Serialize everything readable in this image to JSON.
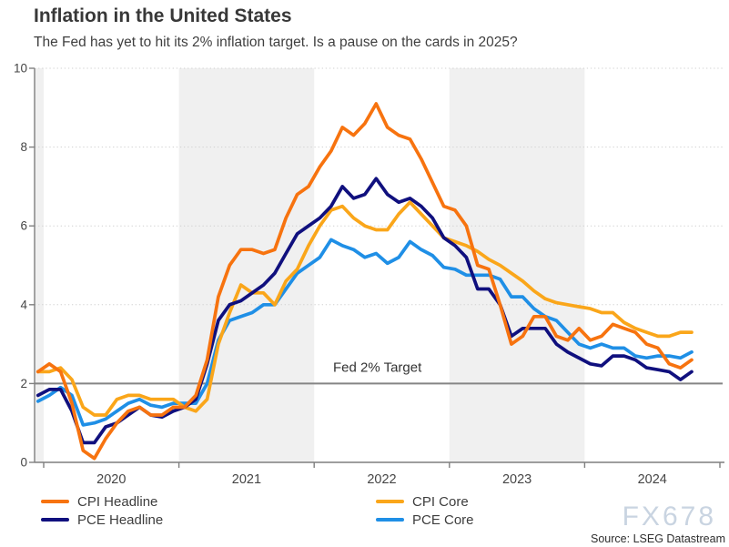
{
  "header": {
    "title": "Inflation in the United States",
    "subtitle": "The Fed has yet to hit its 2% inflation target. Is a pause on the cards in 2025?"
  },
  "chart_data": {
    "type": "line",
    "frequency": "monthly",
    "start": "Dec 2019",
    "end": "Oct 2024",
    "unit": "percent, year-over-year",
    "y_axis": {
      "min": 0,
      "max": 10,
      "tick_labels": [
        "0",
        "2",
        "4",
        "6",
        "8",
        "10"
      ]
    },
    "x_axis": {
      "tick_labels": [
        "2020",
        "2021",
        "2022",
        "2023",
        "2024"
      ]
    },
    "grid": "dotted horizontal",
    "shaded_years": [
      "2021",
      "2023"
    ],
    "target_line": {
      "label": "Fed 2% Target",
      "value": 2,
      "color": "#858585"
    },
    "series": [
      {
        "name": "CPI Headline",
        "color": "#F7730F",
        "values": [
          2.3,
          2.5,
          2.3,
          1.5,
          0.3,
          0.1,
          0.6,
          1.0,
          1.3,
          1.4,
          1.2,
          1.2,
          1.4,
          1.4,
          1.7,
          2.6,
          4.2,
          5.0,
          5.4,
          5.4,
          5.3,
          5.4,
          6.2,
          6.8,
          7.0,
          7.5,
          7.9,
          8.5,
          8.3,
          8.6,
          9.1,
          8.5,
          8.3,
          8.2,
          7.7,
          7.1,
          6.5,
          6.4,
          6.0,
          5.0,
          4.9,
          4.0,
          3.0,
          3.2,
          3.7,
          3.7,
          3.2,
          3.1,
          3.4,
          3.1,
          3.2,
          3.5,
          3.4,
          3.3,
          3.0,
          2.9,
          2.5,
          2.4,
          2.6
        ]
      },
      {
        "name": "PCE Headline",
        "color": "#10107E",
        "values": [
          1.7,
          1.85,
          1.85,
          1.3,
          0.5,
          0.5,
          0.9,
          1.0,
          1.2,
          1.4,
          1.2,
          1.15,
          1.3,
          1.4,
          1.6,
          2.5,
          3.6,
          4.0,
          4.1,
          4.3,
          4.5,
          4.8,
          5.3,
          5.8,
          6.0,
          6.2,
          6.5,
          7.0,
          6.7,
          6.8,
          7.2,
          6.8,
          6.6,
          6.7,
          6.5,
          6.2,
          5.7,
          5.5,
          5.2,
          4.4,
          4.4,
          4.0,
          3.2,
          3.4,
          3.4,
          3.4,
          3.0,
          2.8,
          2.65,
          2.5,
          2.45,
          2.7,
          2.7,
          2.6,
          2.4,
          2.35,
          2.3,
          2.1,
          2.3
        ]
      },
      {
        "name": "CPI Core",
        "color": "#FAA61A",
        "values": [
          2.3,
          2.3,
          2.4,
          2.1,
          1.4,
          1.2,
          1.2,
          1.6,
          1.7,
          1.7,
          1.6,
          1.6,
          1.6,
          1.4,
          1.3,
          1.6,
          3.0,
          3.8,
          4.5,
          4.3,
          4.3,
          4.0,
          4.6,
          4.9,
          5.5,
          6.0,
          6.4,
          6.5,
          6.2,
          6.0,
          5.9,
          5.9,
          6.3,
          6.6,
          6.3,
          6.0,
          5.7,
          5.6,
          5.5,
          5.35,
          5.15,
          5.0,
          4.8,
          4.6,
          4.35,
          4.15,
          4.05,
          4.0,
          3.95,
          3.9,
          3.8,
          3.8,
          3.55,
          3.4,
          3.3,
          3.2,
          3.2,
          3.3,
          3.3
        ]
      },
      {
        "name": "PCE Core",
        "color": "#1F8FE6",
        "values": [
          1.55,
          1.7,
          1.9,
          1.7,
          0.95,
          1.0,
          1.1,
          1.3,
          1.5,
          1.6,
          1.45,
          1.4,
          1.5,
          1.5,
          1.5,
          2.0,
          3.1,
          3.6,
          3.7,
          3.8,
          4.0,
          4.0,
          4.4,
          4.8,
          5.0,
          5.2,
          5.65,
          5.5,
          5.4,
          5.2,
          5.3,
          5.05,
          5.2,
          5.6,
          5.4,
          5.25,
          4.95,
          4.9,
          4.75,
          4.75,
          4.75,
          4.65,
          4.2,
          4.2,
          3.9,
          3.7,
          3.6,
          3.3,
          3.0,
          2.9,
          3.0,
          2.9,
          2.9,
          2.7,
          2.65,
          2.7,
          2.7,
          2.65,
          2.8
        ]
      }
    ]
  },
  "watermark": "FX678",
  "source": "Source: LSEG Datastream"
}
